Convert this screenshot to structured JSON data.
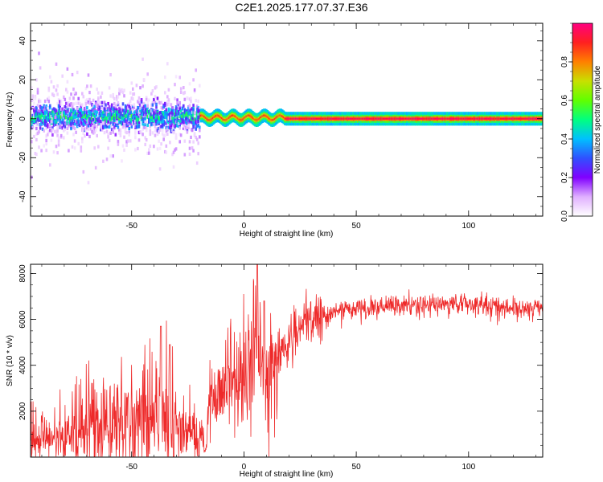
{
  "figure": {
    "title": "C2E1.2025.177.07.37.E36"
  },
  "chart_data": [
    {
      "type": "heatmap",
      "xlabel": "Height of straight line (km)",
      "ylabel": "Frequency (Hz)",
      "xlim": [
        -95,
        133
      ],
      "ylim": [
        -50,
        49
      ],
      "xticks": [
        -50,
        0,
        50,
        100
      ],
      "yticks": [
        -40,
        -20,
        0,
        20,
        40
      ],
      "colorbar": {
        "label": "Normalized spectral amplitude",
        "range": [
          0,
          1
        ],
        "ticks": [
          "0.0",
          "0.2",
          "0.4",
          "0.6",
          "0.8"
        ],
        "colormap": [
          "#ffffff",
          "#e0b0ff",
          "#8000ff",
          "#3050ff",
          "#00c0ff",
          "#00ff80",
          "#60ff00",
          "#c8e000",
          "#ff8000",
          "#ff2020",
          "#ff0080"
        ]
      },
      "regions": [
        {
          "x": [
            -95,
            -20
          ],
          "freq_center": 1,
          "freq_spread": 6,
          "amplitude": 0.3,
          "note_scatter": 25
        },
        {
          "x": [
            -20,
            18
          ],
          "freq_center": 0.5,
          "freq_spread": 2,
          "amplitude": 0.85
        },
        {
          "x": [
            18,
            133
          ],
          "freq_center": 0,
          "freq_spread": 1,
          "amplitude": 0.95
        }
      ]
    },
    {
      "type": "line",
      "xlabel": "Height of straight line (km)",
      "ylabel": "SNR (10 * v/v)",
      "xlim": [
        -95,
        133
      ],
      "ylim": [
        0,
        8400
      ],
      "xticks": [
        -50,
        0,
        50,
        100
      ],
      "yticks": [
        2000,
        4000,
        6000,
        8000
      ],
      "series": [
        {
          "color": "#ee2a2a",
          "x": [
            -95,
            -85,
            -75,
            -65,
            -55,
            -48,
            -42,
            -38,
            -35,
            -30,
            -25,
            -20,
            -17,
            -15,
            -10,
            -5,
            0,
            3,
            5,
            8,
            10,
            12,
            15,
            20,
            25,
            30,
            40,
            50,
            60,
            70,
            80,
            90,
            100,
            110,
            120,
            133
          ],
          "y": [
            700,
            800,
            1000,
            1300,
            1500,
            1700,
            1800,
            2000,
            1800,
            1300,
            1000,
            700,
            400,
            2900,
            3000,
            3400,
            3700,
            3900,
            4800,
            3800,
            3500,
            3500,
            4500,
            5000,
            5600,
            5900,
            6350,
            6450,
            6500,
            6600,
            6600,
            6650,
            6700,
            6600,
            6450,
            6500
          ]
        }
      ],
      "peaks": [
        {
          "x": -37,
          "y": 5700
        },
        {
          "x": -33,
          "y": 4900
        },
        {
          "x": 6,
          "y": 8400
        },
        {
          "x": 9,
          "y": 6800
        }
      ]
    }
  ]
}
